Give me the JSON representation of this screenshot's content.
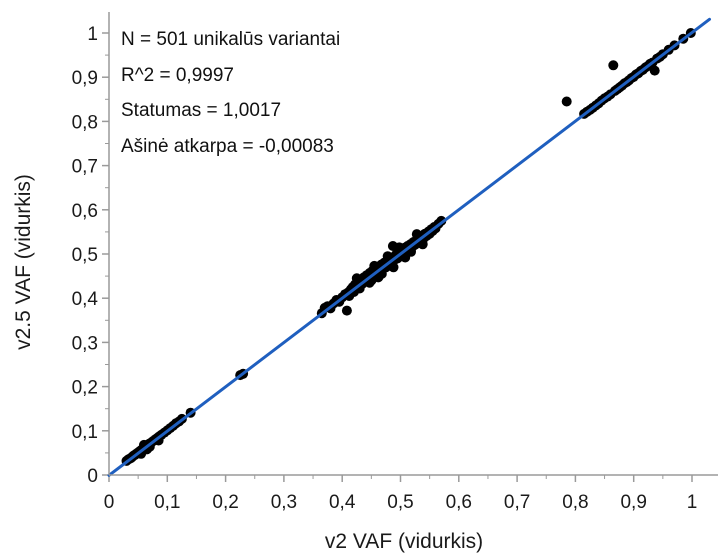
{
  "chart_data": {
    "type": "scatter",
    "xlabel": "v2 VAF (vidurkis)",
    "ylabel": "v2.5 VAF (vidurkis)",
    "xlim": [
      0,
      1.03
    ],
    "ylim": [
      0,
      1.03
    ],
    "x_ticks": [
      "0",
      "0,1",
      "0,2",
      "0,3",
      "0,4",
      "0,5",
      "0,6",
      "0,7",
      "0,8",
      "0,9",
      "1"
    ],
    "y_ticks": [
      "0",
      "0,1",
      "0,2",
      "0,3",
      "0,4",
      "0,5",
      "0,6",
      "0,7",
      "0,8",
      "0,9",
      "1"
    ],
    "grid": false,
    "annotations": [
      "N = 501 unikalūs variantai",
      "R^2 = 0,9997",
      "Statumas = 1,0017",
      "Ašinė atkarpa = -0,00083"
    ],
    "fit_line": {
      "slope": 1.0017,
      "intercept": -0.00083,
      "x_range": [
        0,
        1.03
      ]
    },
    "marker_color": "#000000",
    "line_color": "#1f5fbf",
    "points": [
      [
        0.03,
        0.032
      ],
      [
        0.033,
        0.035
      ],
      [
        0.036,
        0.037
      ],
      [
        0.038,
        0.039
      ],
      [
        0.04,
        0.041
      ],
      [
        0.042,
        0.044
      ],
      [
        0.044,
        0.045
      ],
      [
        0.046,
        0.047
      ],
      [
        0.048,
        0.049
      ],
      [
        0.05,
        0.051
      ],
      [
        0.052,
        0.053
      ],
      [
        0.054,
        0.055
      ],
      [
        0.056,
        0.057
      ],
      [
        0.058,
        0.059
      ],
      [
        0.06,
        0.061
      ],
      [
        0.062,
        0.063
      ],
      [
        0.064,
        0.065
      ],
      [
        0.066,
        0.066
      ],
      [
        0.068,
        0.07
      ],
      [
        0.07,
        0.071
      ],
      [
        0.072,
        0.073
      ],
      [
        0.075,
        0.076
      ],
      [
        0.078,
        0.079
      ],
      [
        0.08,
        0.081
      ],
      [
        0.083,
        0.084
      ],
      [
        0.086,
        0.087
      ],
      [
        0.09,
        0.091
      ],
      [
        0.095,
        0.096
      ],
      [
        0.1,
        0.101
      ],
      [
        0.105,
        0.106
      ],
      [
        0.11,
        0.111
      ],
      [
        0.115,
        0.117
      ],
      [
        0.12,
        0.121
      ],
      [
        0.125,
        0.127
      ],
      [
        0.14,
        0.141
      ],
      [
        0.055,
        0.048
      ],
      [
        0.06,
        0.068
      ],
      [
        0.065,
        0.058
      ],
      [
        0.07,
        0.064
      ],
      [
        0.085,
        0.078
      ],
      [
        0.225,
        0.226
      ],
      [
        0.23,
        0.229
      ],
      [
        0.365,
        0.366
      ],
      [
        0.37,
        0.378
      ],
      [
        0.375,
        0.382
      ],
      [
        0.38,
        0.377
      ],
      [
        0.385,
        0.388
      ],
      [
        0.39,
        0.396
      ],
      [
        0.395,
        0.392
      ],
      [
        0.4,
        0.402
      ],
      [
        0.405,
        0.409
      ],
      [
        0.408,
        0.372
      ],
      [
        0.41,
        0.413
      ],
      [
        0.412,
        0.405
      ],
      [
        0.415,
        0.42
      ],
      [
        0.418,
        0.425
      ],
      [
        0.42,
        0.414
      ],
      [
        0.422,
        0.431
      ],
      [
        0.425,
        0.427
      ],
      [
        0.428,
        0.436
      ],
      [
        0.43,
        0.422
      ],
      [
        0.432,
        0.44
      ],
      [
        0.435,
        0.433
      ],
      [
        0.437,
        0.447
      ],
      [
        0.44,
        0.438
      ],
      [
        0.442,
        0.452
      ],
      [
        0.445,
        0.443
      ],
      [
        0.447,
        0.457
      ],
      [
        0.45,
        0.44
      ],
      [
        0.452,
        0.462
      ],
      [
        0.455,
        0.452
      ],
      [
        0.457,
        0.465
      ],
      [
        0.46,
        0.455
      ],
      [
        0.462,
        0.47
      ],
      [
        0.465,
        0.462
      ],
      [
        0.467,
        0.476
      ],
      [
        0.47,
        0.466
      ],
      [
        0.472,
        0.48
      ],
      [
        0.475,
        0.47
      ],
      [
        0.477,
        0.485
      ],
      [
        0.48,
        0.476
      ],
      [
        0.482,
        0.49
      ],
      [
        0.485,
        0.482
      ],
      [
        0.487,
        0.518
      ],
      [
        0.49,
        0.487
      ],
      [
        0.492,
        0.498
      ],
      [
        0.495,
        0.49
      ],
      [
        0.497,
        0.505
      ],
      [
        0.5,
        0.496
      ],
      [
        0.502,
        0.51
      ],
      [
        0.505,
        0.501
      ],
      [
        0.507,
        0.514
      ],
      [
        0.51,
        0.505
      ],
      [
        0.512,
        0.518
      ],
      [
        0.515,
        0.511
      ],
      [
        0.517,
        0.522
      ],
      [
        0.52,
        0.516
      ],
      [
        0.522,
        0.527
      ],
      [
        0.525,
        0.521
      ],
      [
        0.527,
        0.531
      ],
      [
        0.53,
        0.526
      ],
      [
        0.532,
        0.536
      ],
      [
        0.535,
        0.531
      ],
      [
        0.537,
        0.541
      ],
      [
        0.54,
        0.536
      ],
      [
        0.542,
        0.546
      ],
      [
        0.545,
        0.541
      ],
      [
        0.548,
        0.551
      ],
      [
        0.55,
        0.546
      ],
      [
        0.553,
        0.556
      ],
      [
        0.555,
        0.552
      ],
      [
        0.558,
        0.561
      ],
      [
        0.56,
        0.558
      ],
      [
        0.565,
        0.568
      ],
      [
        0.57,
        0.575
      ],
      [
        0.447,
        0.435
      ],
      [
        0.455,
        0.473
      ],
      [
        0.468,
        0.455
      ],
      [
        0.478,
        0.495
      ],
      [
        0.488,
        0.47
      ],
      [
        0.498,
        0.515
      ],
      [
        0.508,
        0.492
      ],
      [
        0.518,
        0.505
      ],
      [
        0.528,
        0.545
      ],
      [
        0.538,
        0.522
      ],
      [
        0.425,
        0.445
      ],
      [
        0.462,
        0.447
      ],
      [
        0.785,
        0.845
      ],
      [
        0.815,
        0.817
      ],
      [
        0.82,
        0.822
      ],
      [
        0.825,
        0.826
      ],
      [
        0.83,
        0.831
      ],
      [
        0.835,
        0.836
      ],
      [
        0.84,
        0.841
      ],
      [
        0.845,
        0.847
      ],
      [
        0.85,
        0.852
      ],
      [
        0.855,
        0.856
      ],
      [
        0.86,
        0.861
      ],
      [
        0.865,
        0.927
      ],
      [
        0.868,
        0.869
      ],
      [
        0.872,
        0.873
      ],
      [
        0.876,
        0.877
      ],
      [
        0.88,
        0.881
      ],
      [
        0.884,
        0.886
      ],
      [
        0.888,
        0.889
      ],
      [
        0.892,
        0.893
      ],
      [
        0.896,
        0.898
      ],
      [
        0.9,
        0.901
      ],
      [
        0.904,
        0.906
      ],
      [
        0.908,
        0.909
      ],
      [
        0.912,
        0.914
      ],
      [
        0.916,
        0.917
      ],
      [
        0.92,
        0.922
      ],
      [
        0.924,
        0.925
      ],
      [
        0.928,
        0.93
      ],
      [
        0.932,
        0.933
      ],
      [
        0.936,
        0.915
      ],
      [
        0.94,
        0.942
      ],
      [
        0.945,
        0.946
      ],
      [
        0.95,
        0.952
      ],
      [
        0.96,
        0.962
      ],
      [
        0.97,
        0.972
      ],
      [
        0.985,
        0.987
      ],
      [
        0.998,
        1.0
      ]
    ]
  }
}
